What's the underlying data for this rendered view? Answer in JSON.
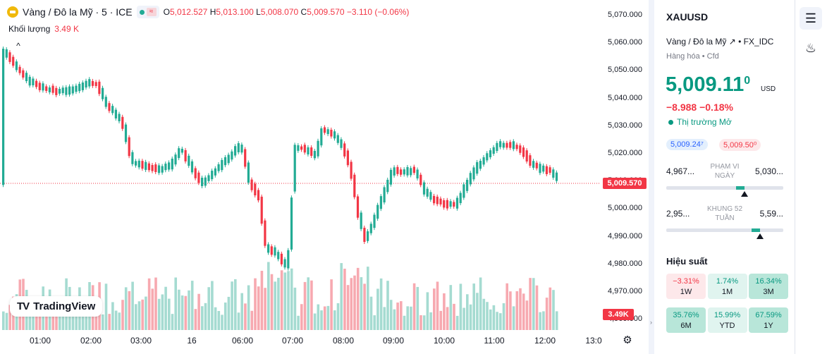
{
  "legend": {
    "title": "Vàng / Đô la Mỹ · 5 · ICE",
    "o_label": "O",
    "o": "5,012.527",
    "h_label": "H",
    "h": "5,013.100",
    "l_label": "L",
    "l": "5,008.070",
    "c_label": "C",
    "c": "5,009.570",
    "change": "−3.110 (−0.06%)",
    "volume_label": "Khối lượng",
    "volume": "3.49 K",
    "collapse": "^",
    "eq": "≈"
  },
  "logo": {
    "text": "TradingView",
    "mark": "TV"
  },
  "price_axis": [
    "5,070.000",
    "5,060.000",
    "5,050.000",
    "5,040.000",
    "5,030.000",
    "5,020.000",
    "5,010.000",
    "5,000.000",
    "4,990.000",
    "4,980.000",
    "4,970.000",
    "4,960.000"
  ],
  "last_price": "5,009.570",
  "volume_tag": "3.49K",
  "time_axis": [
    "01:00",
    "02:00",
    "03:00",
    "16",
    "06:00",
    "07:00",
    "08:00",
    "09:00",
    "10:00",
    "11:00",
    "12:00",
    "13:0"
  ],
  "settings_icon": "⚙",
  "panel": {
    "symbol": "XAUUSD",
    "description": "Vàng / Đô la Mỹ ↗ • FX_IDC",
    "sub": "Hàng hóa • Cfd",
    "price_main": "5,009.11",
    "price_sup": "0",
    "currency": "USD",
    "change": "−8.988  −0.18%",
    "market": "Thị trường Mở",
    "bid": "5,009.24⁷",
    "ask": "5,009.50⁰",
    "day_range": {
      "low": "4,967...",
      "high": "5,030...",
      "label": "PHẠM VI NGÀY",
      "position": 0.67
    },
    "week52_range": {
      "low": "2,95...",
      "high": "5,59...",
      "label": "KHUNG 52 TUẦN",
      "position": 0.8
    },
    "performance_title": "Hiệu suất",
    "performance": [
      {
        "value": "−3.31%",
        "key": "1W",
        "tone": "neg"
      },
      {
        "value": "1.74%",
        "key": "1M",
        "tone": "pos1"
      },
      {
        "value": "16.34%",
        "key": "3M",
        "tone": "pos2"
      },
      {
        "value": "35.76%",
        "key": "6M",
        "tone": "pos2"
      },
      {
        "value": "15.99%",
        "key": "YTD",
        "tone": "pos1"
      },
      {
        "value": "67.59%",
        "key": "1Y",
        "tone": "pos2"
      }
    ]
  },
  "toolbar": {
    "watchlist_icon": "☰",
    "fire_icon": "♨"
  },
  "colors": {
    "up": "#22ab94",
    "down": "#f23645",
    "vol_up": "#a5dbd1",
    "vol_down": "#f7a9b0"
  }
}
